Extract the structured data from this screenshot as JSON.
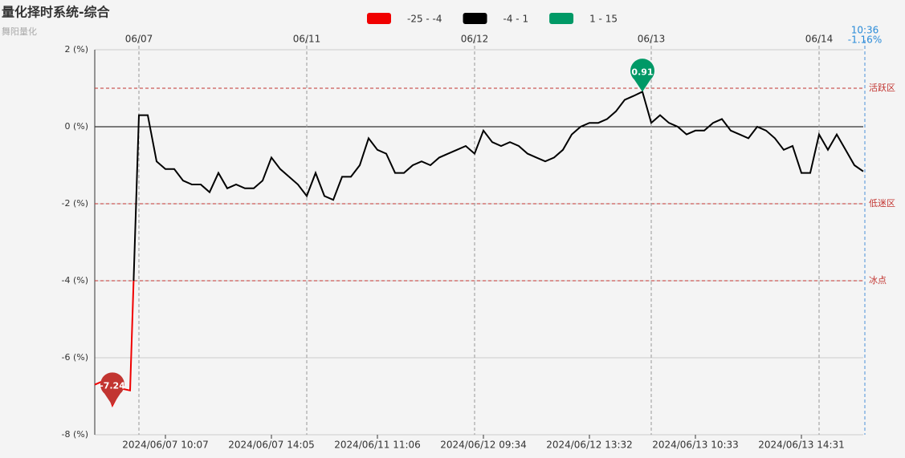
{
  "chart_data": {
    "type": "line",
    "title": "量化择时系统-综合",
    "subtitle": "舞阳量化",
    "pieces": [
      {
        "min": -25,
        "max": -4,
        "label": "-25 - -4",
        "color": "#f00000"
      },
      {
        "min": -4,
        "max": 1,
        "label": "-4 - 1",
        "color": "#000000"
      },
      {
        "min": 1,
        "max": 15,
        "label": "1 - 15",
        "color": "#009966"
      }
    ],
    "categories": [
      null,
      null,
      null,
      null,
      null,
      null,
      null,
      null,
      "2024/06/07 10:07",
      null,
      null,
      null,
      null,
      null,
      null,
      null,
      null,
      null,
      null,
      null,
      "2024/06/07 14:05",
      null,
      null,
      null,
      null,
      null,
      null,
      null,
      null,
      null,
      null,
      null,
      "2024/06/11 11:06",
      null,
      null,
      null,
      null,
      null,
      null,
      null,
      null,
      null,
      null,
      null,
      "2024/06/12 09:34",
      null,
      null,
      null,
      null,
      null,
      null,
      null,
      null,
      null,
      null,
      null,
      "2024/06/12 13:32",
      null,
      null,
      null,
      null,
      null,
      null,
      null,
      null,
      null,
      null,
      null,
      "2024/06/13 10:33",
      null,
      null,
      null,
      null,
      null,
      null,
      null,
      null,
      null,
      null,
      null,
      "2024/06/13 14:31",
      null,
      null,
      null,
      null,
      null,
      null,
      null
    ],
    "top_categories": [
      null,
      null,
      null,
      null,
      null,
      "06/07",
      null,
      null,
      null,
      null,
      null,
      null,
      null,
      null,
      null,
      null,
      null,
      null,
      null,
      null,
      null,
      null,
      null,
      null,
      "06/11",
      null,
      null,
      null,
      null,
      null,
      null,
      null,
      null,
      null,
      null,
      null,
      null,
      null,
      null,
      null,
      null,
      null,
      null,
      "06/12",
      null,
      null,
      null,
      null,
      null,
      null,
      null,
      null,
      null,
      null,
      null,
      null,
      null,
      null,
      null,
      null,
      null,
      null,
      null,
      "06/13",
      null,
      null,
      null,
      null,
      null,
      null,
      null,
      null,
      null,
      null,
      null,
      null,
      null,
      null,
      null,
      null,
      null,
      null,
      "06/14",
      null,
      null,
      null,
      null,
      null
    ],
    "values": [
      -6.7,
      -6.6,
      -7.24,
      -6.8,
      -6.85,
      0.3,
      0.3,
      -0.9,
      -1.1,
      -1.1,
      -1.4,
      -1.5,
      -1.5,
      -1.7,
      -1.2,
      -1.6,
      -1.5,
      -1.6,
      -1.6,
      -1.4,
      -0.8,
      -1.1,
      -1.3,
      -1.5,
      -1.8,
      -1.2,
      -1.8,
      -1.9,
      -1.3,
      -1.3,
      -1.0,
      -0.3,
      -0.6,
      -0.7,
      -1.2,
      -1.2,
      -1.0,
      -0.9,
      -1.0,
      -0.8,
      -0.7,
      -0.6,
      -0.5,
      -0.7,
      -0.1,
      -0.4,
      -0.5,
      -0.4,
      -0.5,
      -0.7,
      -0.8,
      -0.9,
      -0.8,
      -0.6,
      -0.2,
      0.0,
      0.1,
      0.1,
      0.2,
      0.4,
      0.7,
      0.8,
      0.91,
      0.1,
      0.3,
      0.1,
      0.0,
      -0.2,
      -0.1,
      -0.1,
      0.1,
      0.2,
      -0.1,
      -0.2,
      -0.3,
      0.0,
      -0.1,
      -0.3,
      -0.6,
      -0.5,
      -1.2,
      -1.2,
      -0.2,
      -0.6,
      -0.2,
      -0.6,
      -1.0,
      -1.16
    ],
    "last_time": "10:36",
    "last_value_label": "-1.16%",
    "mark_lines": [
      {
        "value": 1,
        "label": "活跃区"
      },
      {
        "value": -2,
        "label": "低迷区"
      },
      {
        "value": -4,
        "label": "冰点"
      }
    ],
    "ylim": [
      -8,
      2
    ],
    "yticks": [
      {
        "value": -8,
        "label": "-8 (%)"
      },
      {
        "value": -6,
        "label": "-6 (%)"
      },
      {
        "value": -4,
        "label": "-4 (%)"
      },
      {
        "value": -2,
        "label": "-2 (%)"
      },
      {
        "value": 0,
        "label": "0 (%)"
      },
      {
        "value": 2,
        "label": "2 (%)"
      }
    ],
    "grid": true
  }
}
